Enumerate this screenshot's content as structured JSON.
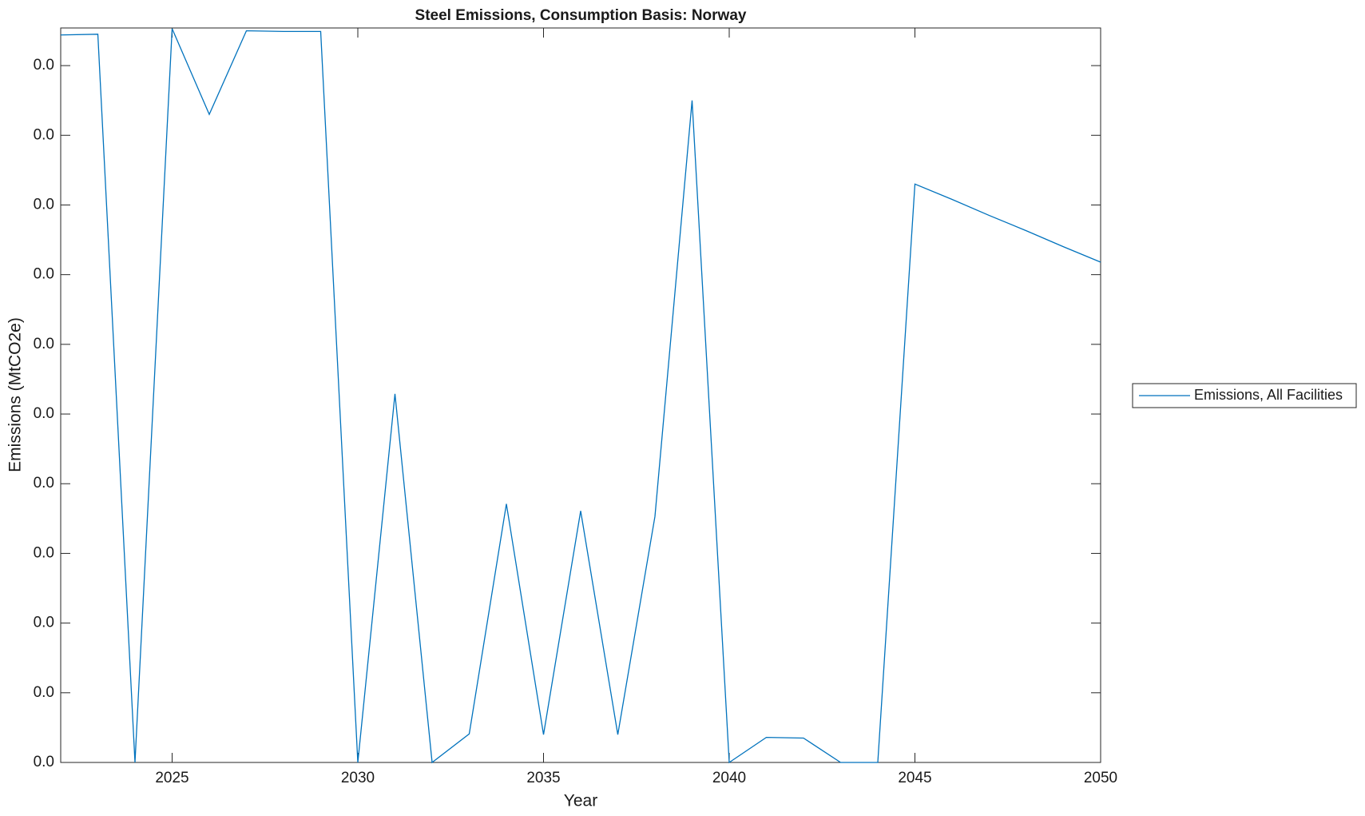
{
  "chart_data": {
    "type": "line",
    "title": "Steel Emissions, Consumption Basis: Norway",
    "x_label": "Year",
    "y_label": "Emissions (MtCO2e)",
    "x": [
      2022,
      2023,
      2024,
      2025,
      2026,
      2027,
      2028,
      2029,
      2030,
      2031,
      2032,
      2033,
      2034,
      2035,
      2036,
      2037,
      2038,
      2039,
      2040,
      2041,
      2042,
      2043,
      2044,
      2045,
      2046,
      2047,
      2048,
      2049,
      2050
    ],
    "series": [
      {
        "name": "Emissions, All Facilities",
        "color": "#0072bd",
        "values": [
          0.01044,
          0.01045,
          0,
          0.01053,
          0.0093,
          0.0105,
          0.01049,
          0.01049,
          0,
          0.00529,
          0,
          0.00041,
          0.00371,
          0.0004,
          0.00361,
          0.0004,
          0.00353,
          0.0095,
          0,
          0.00036,
          0.00035,
          0,
          0,
          0.0083,
          0.00808,
          0.00785,
          0.00763,
          0.0074,
          0.00718
        ]
      }
    ],
    "xlim": [
      2022,
      2050
    ],
    "xticks": [
      2025,
      2030,
      2035,
      2040,
      2045,
      2050
    ],
    "ylim": [
      0,
      0.01054
    ],
    "yticks": [
      {
        "value": 0,
        "label": "0.0"
      },
      {
        "value": 0.001,
        "label": "0.0"
      },
      {
        "value": 0.002,
        "label": "0.0"
      },
      {
        "value": 0.003,
        "label": "0.0"
      },
      {
        "value": 0.004,
        "label": "0.0"
      },
      {
        "value": 0.005,
        "label": "0.0"
      },
      {
        "value": 0.006,
        "label": "0.0"
      },
      {
        "value": 0.007,
        "label": "0.0"
      },
      {
        "value": 0.008,
        "label": "0.0"
      },
      {
        "value": 0.009,
        "label": "0.0"
      },
      {
        "value": 0.01,
        "label": "0.0"
      }
    ],
    "legend": "east-outside"
  }
}
